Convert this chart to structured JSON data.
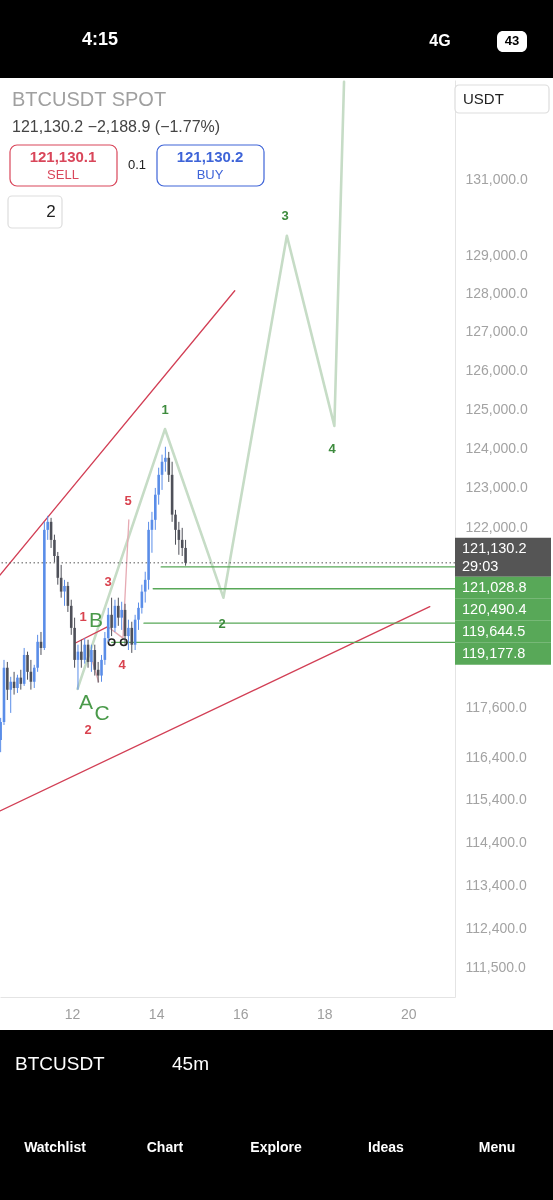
{
  "chart_data": {
    "type": "candlestick",
    "title": "BTCUSDT SPOT",
    "subtitle": "121,130.2  −2,188.9 (−1.77%)",
    "annotations": [
      "121,130.1",
      "SELL",
      "0.1",
      "121,130.2",
      "BUY",
      "2",
      "USDT",
      "29:03",
      "4:15",
      "4G",
      "43",
      "BTCUSDT",
      "45m",
      "Watchlist",
      "Chart",
      "Explore",
      "Ideas",
      "Menu",
      "1",
      "2",
      "3",
      "4",
      "5",
      "1",
      "2",
      "3",
      "4",
      "A",
      "B",
      "C"
    ],
    "x": [
      10.3,
      10.38,
      10.46,
      10.54,
      10.62,
      10.7,
      10.78,
      10.86,
      10.94,
      11.02,
      11.1,
      11.18,
      11.26,
      11.34,
      11.42,
      11.5,
      11.58,
      11.66,
      11.74,
      11.82,
      11.9,
      11.98,
      12.06,
      12.14,
      12.22,
      12.3,
      12.38,
      12.46,
      12.54,
      12.62,
      12.7,
      12.78,
      12.86,
      12.94,
      13.02,
      13.1,
      13.18,
      13.26,
      13.34,
      13.42,
      13.5,
      13.58,
      13.66,
      13.74,
      13.82,
      13.9,
      13.98,
      14.06,
      14.14,
      14.22,
      14.3,
      14.38,
      14.46,
      14.54,
      14.62,
      14.7
    ],
    "ohlc": [
      [
        116820,
        117350,
        116530,
        117250
      ],
      [
        117250,
        118750,
        117180,
        118560
      ],
      [
        118560,
        118700,
        117780,
        118030
      ],
      [
        118030,
        118340,
        117470,
        118220
      ],
      [
        118220,
        118460,
        117910,
        118070
      ],
      [
        118070,
        118390,
        117950,
        118320
      ],
      [
        118320,
        118510,
        118030,
        118170
      ],
      [
        118170,
        119040,
        118120,
        118870
      ],
      [
        118870,
        118950,
        118270,
        118460
      ],
      [
        118460,
        118750,
        118030,
        118220
      ],
      [
        118220,
        118630,
        118070,
        118560
      ],
      [
        118560,
        119360,
        118460,
        119190
      ],
      [
        119190,
        119430,
        118870,
        119040
      ],
      [
        119040,
        122150,
        118990,
        121950
      ],
      [
        121950,
        122300,
        121700,
        122150
      ],
      [
        122150,
        122250,
        121500,
        121700
      ],
      [
        121700,
        121830,
        121150,
        121300
      ],
      [
        121300,
        121400,
        120590,
        120760
      ],
      [
        120760,
        121080,
        120270,
        120420
      ],
      [
        120420,
        120710,
        120070,
        120560
      ],
      [
        120560,
        120660,
        119920,
        120070
      ],
      [
        120070,
        120220,
        119360,
        119530
      ],
      [
        119530,
        119780,
        118560,
        118750
      ],
      [
        118750,
        119120,
        118030,
        118950
      ],
      [
        118950,
        119240,
        118560,
        118750
      ],
      [
        118750,
        119280,
        118660,
        119120
      ],
      [
        119120,
        119240,
        118560,
        118700
      ],
      [
        118700,
        119120,
        118460,
        118990
      ],
      [
        118990,
        119120,
        118370,
        118510
      ],
      [
        118510,
        118700,
        118200,
        118370
      ],
      [
        118370,
        118870,
        118220,
        118750
      ],
      [
        118750,
        119430,
        118630,
        119280
      ],
      [
        119280,
        120020,
        119190,
        119850
      ],
      [
        119850,
        120270,
        119330,
        119530
      ],
      [
        119530,
        120220,
        119430,
        120070
      ],
      [
        120070,
        120270,
        119580,
        119780
      ],
      [
        119780,
        120170,
        119480,
        119970
      ],
      [
        119970,
        120120,
        119140,
        119330
      ],
      [
        119330,
        119730,
        118990,
        119530
      ],
      [
        119530,
        119680,
        118920,
        119120
      ],
      [
        119120,
        119850,
        118990,
        119730
      ],
      [
        119730,
        120150,
        119480,
        120020
      ],
      [
        120020,
        120590,
        119880,
        120420
      ],
      [
        120420,
        120910,
        120150,
        120710
      ],
      [
        120710,
        122150,
        120470,
        121950
      ],
      [
        121950,
        122400,
        121380,
        122200
      ],
      [
        122200,
        123000,
        121950,
        122830
      ],
      [
        122830,
        123510,
        122580,
        123330
      ],
      [
        123330,
        123840,
        122950,
        123660
      ],
      [
        123660,
        124040,
        123410,
        123760
      ],
      [
        123760,
        123910,
        123150,
        123330
      ],
      [
        123330,
        123660,
        122150,
        122330
      ],
      [
        122330,
        122450,
        121580,
        121950
      ],
      [
        121950,
        122150,
        121330,
        121700
      ],
      [
        121700,
        122000,
        121300,
        121500
      ],
      [
        121500,
        121700,
        121060,
        121130.2
      ]
    ],
    "colors": [
      "#5a8de8",
      "#5a8de8",
      "#4e5059",
      "#5a8de8",
      "#4e5059",
      "#5a8de8",
      "#4e5059",
      "#5a8de8",
      "#4e5059",
      "#4e5059",
      "#5a8de8",
      "#5a8de8",
      "#4e5059",
      "#5a8de8",
      "#5a8de8",
      "#4e5059",
      "#4e5059",
      "#4e5059",
      "#4e5059",
      "#5a8de8",
      "#4e5059",
      "#4e5059",
      "#4e5059",
      "#5a8de8",
      "#4e5059",
      "#5a8de8",
      "#4e5059",
      "#5a8de8",
      "#4e5059",
      "#4e5059",
      "#5a8de8",
      "#5a8de8",
      "#5a8de8",
      "#4e5059",
      "#5a8de8",
      "#4e5059",
      "#5a8de8",
      "#4e5059",
      "#5a8de8",
      "#4e5059",
      "#5a8de8",
      "#5a8de8",
      "#5a8de8",
      "#5a8de8",
      "#5a8de8",
      "#5a8de8",
      "#5a8de8",
      "#5a8de8",
      "#5a8de8",
      "#5a8de8",
      "#4e5059",
      "#4e5059",
      "#4e5059",
      "#4e5059",
      "#4e5059",
      "#4e5059"
    ],
    "series": [
      {
        "type": "line",
        "color": "#c6dcc6",
        "x": [
          12.13,
          14.21,
          15.6,
          17.11,
          18.24,
          18.47
        ],
        "values": [
          118050,
          124490,
          120270,
          129510,
          124570,
          133650
        ]
      },
      {
        "type": "line",
        "color": "#d23f55",
        "x": [
          10.285,
          15.87
        ],
        "values": [
          120830,
          128060
        ]
      },
      {
        "type": "line",
        "color": "#d23f55",
        "x": [
          10.285,
          20.51
        ],
        "values": [
          115140,
          120050
        ]
      },
      {
        "type": "line",
        "color": "#d23f55",
        "x": [
          12.08,
          12.85
        ],
        "values": [
          119160,
          119560
        ]
      },
      {
        "type": "line",
        "color": "#e6aab3",
        "x": [
          12.85,
          13.21,
          13.35
        ],
        "values": [
          119560,
          119280,
          122200
        ]
      },
      {
        "type": "line",
        "color": "#e6aab3",
        "x": [
          12.49,
          12.63
        ],
        "values": [
          118700,
          118220
        ]
      },
      {
        "type": "line",
        "color": "#58a858",
        "x": [
          14.12,
          21.11
        ],
        "values": [
          121028.8,
          121028.8
        ],
        "value_labels": [
          null,
          "121,028.8"
        ]
      },
      {
        "type": "line",
        "color": "#58a858",
        "x": [
          13.93,
          21.11
        ],
        "values": [
          120490.4,
          120490.4
        ],
        "value_labels": [
          null,
          "120,490.4"
        ]
      },
      {
        "type": "line",
        "color": "#58a858",
        "x": [
          13.71,
          21.11
        ],
        "values": [
          119644.5,
          119644.5
        ],
        "value_labels": [
          null,
          "119,644.5"
        ]
      },
      {
        "type": "line",
        "color": "#58a858",
        "x": [
          12.94,
          21.11
        ],
        "values": [
          119177.8,
          119177.8
        ],
        "value_labels": [
          null,
          "119,177.8"
        ]
      },
      {
        "type": "scatter",
        "color": "#222222",
        "marker": "circle",
        "x": [
          12.94,
          13.23
        ],
        "values": [
          119177.8,
          119177.8
        ]
      }
    ],
    "ref_lines": [
      {
        "axis": "y",
        "value": 121130.2,
        "label": "121,130.2",
        "line_style": "dotted",
        "color": "#555555"
      }
    ],
    "xlim": [
      10.285,
      21.11
    ],
    "xticks": [
      12,
      14,
      16,
      18,
      20
    ],
    "ylim": [
      110840,
      133700
    ],
    "yticks": [
      {
        "value": 131000,
        "label": "131,000.0"
      },
      {
        "value": 129000,
        "label": "129,000.0"
      },
      {
        "value": 128000,
        "label": "128,000.0"
      },
      {
        "value": 127000,
        "label": "127,000.0"
      },
      {
        "value": 126000,
        "label": "126,000.0"
      },
      {
        "value": 125000,
        "label": "125,000.0"
      },
      {
        "value": 124000,
        "label": "124,000.0"
      },
      {
        "value": 123000,
        "label": "123,000.0"
      },
      {
        "value": 122000,
        "label": "122,000.0"
      },
      {
        "value": 117600,
        "label": "117,600.0"
      },
      {
        "value": 116400,
        "label": "116,400.0"
      },
      {
        "value": 115400,
        "label": "115,400.0"
      },
      {
        "value": 114400,
        "label": "114,400.0"
      },
      {
        "value": 113400,
        "label": "113,400.0"
      },
      {
        "value": 112400,
        "label": "112,400.0"
      },
      {
        "value": 111500,
        "label": "111,500.0"
      }
    ],
    "log": "y"
  }
}
